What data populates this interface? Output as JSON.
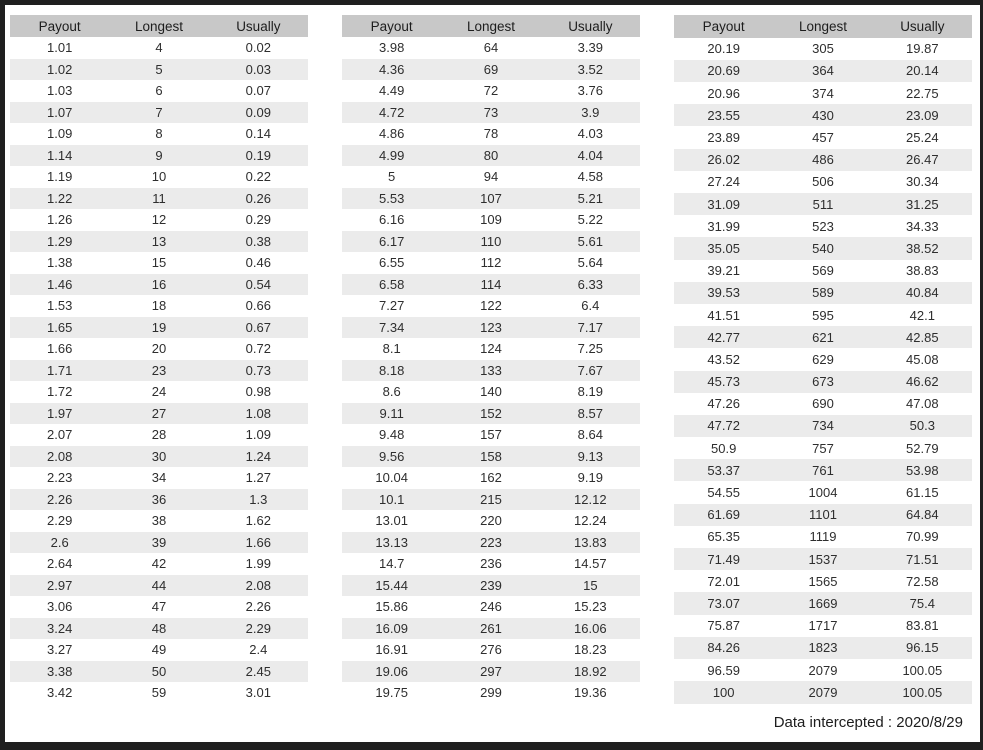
{
  "colors": {
    "frame": "#1f1f1f",
    "header_bg": "#c8c8c8",
    "stripe_bg": "#ebebeb",
    "text": "#2e2e2e"
  },
  "columns": [
    "Payout",
    "Longest",
    "Usually"
  ],
  "chart_data": [
    {
      "type": "table",
      "columns": [
        "Payout",
        "Longest",
        "Usually"
      ],
      "rows": [
        [
          "1.01",
          "4",
          "0.02"
        ],
        [
          "1.02",
          "5",
          "0.03"
        ],
        [
          "1.03",
          "6",
          "0.07"
        ],
        [
          "1.07",
          "7",
          "0.09"
        ],
        [
          "1.09",
          "8",
          "0.14"
        ],
        [
          "1.14",
          "9",
          "0.19"
        ],
        [
          "1.19",
          "10",
          "0.22"
        ],
        [
          "1.22",
          "11",
          "0.26"
        ],
        [
          "1.26",
          "12",
          "0.29"
        ],
        [
          "1.29",
          "13",
          "0.38"
        ],
        [
          "1.38",
          "15",
          "0.46"
        ],
        [
          "1.46",
          "16",
          "0.54"
        ],
        [
          "1.53",
          "18",
          "0.66"
        ],
        [
          "1.65",
          "19",
          "0.67"
        ],
        [
          "1.66",
          "20",
          "0.72"
        ],
        [
          "1.71",
          "23",
          "0.73"
        ],
        [
          "1.72",
          "24",
          "0.98"
        ],
        [
          "1.97",
          "27",
          "1.08"
        ],
        [
          "2.07",
          "28",
          "1.09"
        ],
        [
          "2.08",
          "30",
          "1.24"
        ],
        [
          "2.23",
          "34",
          "1.27"
        ],
        [
          "2.26",
          "36",
          "1.3"
        ],
        [
          "2.29",
          "38",
          "1.62"
        ],
        [
          "2.6",
          "39",
          "1.66"
        ],
        [
          "2.64",
          "42",
          "1.99"
        ],
        [
          "2.97",
          "44",
          "2.08"
        ],
        [
          "3.06",
          "47",
          "2.26"
        ],
        [
          "3.24",
          "48",
          "2.29"
        ],
        [
          "3.27",
          "49",
          "2.4"
        ],
        [
          "3.38",
          "50",
          "2.45"
        ],
        [
          "3.42",
          "59",
          "3.01"
        ]
      ]
    },
    {
      "type": "table",
      "columns": [
        "Payout",
        "Longest",
        "Usually"
      ],
      "rows": [
        [
          "3.98",
          "64",
          "3.39"
        ],
        [
          "4.36",
          "69",
          "3.52"
        ],
        [
          "4.49",
          "72",
          "3.76"
        ],
        [
          "4.72",
          "73",
          "3.9"
        ],
        [
          "4.86",
          "78",
          "4.03"
        ],
        [
          "4.99",
          "80",
          "4.04"
        ],
        [
          "5",
          "94",
          "4.58"
        ],
        [
          "5.53",
          "107",
          "5.21"
        ],
        [
          "6.16",
          "109",
          "5.22"
        ],
        [
          "6.17",
          "110",
          "5.61"
        ],
        [
          "6.55",
          "112",
          "5.64"
        ],
        [
          "6.58",
          "114",
          "6.33"
        ],
        [
          "7.27",
          "122",
          "6.4"
        ],
        [
          "7.34",
          "123",
          "7.17"
        ],
        [
          "8.1",
          "124",
          "7.25"
        ],
        [
          "8.18",
          "133",
          "7.67"
        ],
        [
          "8.6",
          "140",
          "8.19"
        ],
        [
          "9.11",
          "152",
          "8.57"
        ],
        [
          "9.48",
          "157",
          "8.64"
        ],
        [
          "9.56",
          "158",
          "9.13"
        ],
        [
          "10.04",
          "162",
          "9.19"
        ],
        [
          "10.1",
          "215",
          "12.12"
        ],
        [
          "13.01",
          "220",
          "12.24"
        ],
        [
          "13.13",
          "223",
          "13.83"
        ],
        [
          "14.7",
          "236",
          "14.57"
        ],
        [
          "15.44",
          "239",
          "15"
        ],
        [
          "15.86",
          "246",
          "15.23"
        ],
        [
          "16.09",
          "261",
          "16.06"
        ],
        [
          "16.91",
          "276",
          "18.23"
        ],
        [
          "19.06",
          "297",
          "18.92"
        ],
        [
          "19.75",
          "299",
          "19.36"
        ]
      ]
    },
    {
      "type": "table",
      "columns": [
        "Payout",
        "Longest",
        "Usually"
      ],
      "rows": [
        [
          "20.19",
          "305",
          "19.87"
        ],
        [
          "20.69",
          "364",
          "20.14"
        ],
        [
          "20.96",
          "374",
          "22.75"
        ],
        [
          "23.55",
          "430",
          "23.09"
        ],
        [
          "23.89",
          "457",
          "25.24"
        ],
        [
          "26.02",
          "486",
          "26.47"
        ],
        [
          "27.24",
          "506",
          "30.34"
        ],
        [
          "31.09",
          "511",
          "31.25"
        ],
        [
          "31.99",
          "523",
          "34.33"
        ],
        [
          "35.05",
          "540",
          "38.52"
        ],
        [
          "39.21",
          "569",
          "38.83"
        ],
        [
          "39.53",
          "589",
          "40.84"
        ],
        [
          "41.51",
          "595",
          "42.1"
        ],
        [
          "42.77",
          "621",
          "42.85"
        ],
        [
          "43.52",
          "629",
          "45.08"
        ],
        [
          "45.73",
          "673",
          "46.62"
        ],
        [
          "47.26",
          "690",
          "47.08"
        ],
        [
          "47.72",
          "734",
          "50.3"
        ],
        [
          "50.9",
          "757",
          "52.79"
        ],
        [
          "53.37",
          "761",
          "53.98"
        ],
        [
          "54.55",
          "1004",
          "61.15"
        ],
        [
          "61.69",
          "1101",
          "64.84"
        ],
        [
          "65.35",
          "1119",
          "70.99"
        ],
        [
          "71.49",
          "1537",
          "71.51"
        ],
        [
          "72.01",
          "1565",
          "72.58"
        ],
        [
          "73.07",
          "1669",
          "75.4"
        ],
        [
          "75.87",
          "1717",
          "83.81"
        ],
        [
          "84.26",
          "1823",
          "96.15"
        ],
        [
          "96.59",
          "2079",
          "100.05"
        ],
        [
          "100",
          "2079",
          "100.05"
        ]
      ]
    }
  ],
  "footer": {
    "label": "Data intercepted : 2020/8/29"
  }
}
